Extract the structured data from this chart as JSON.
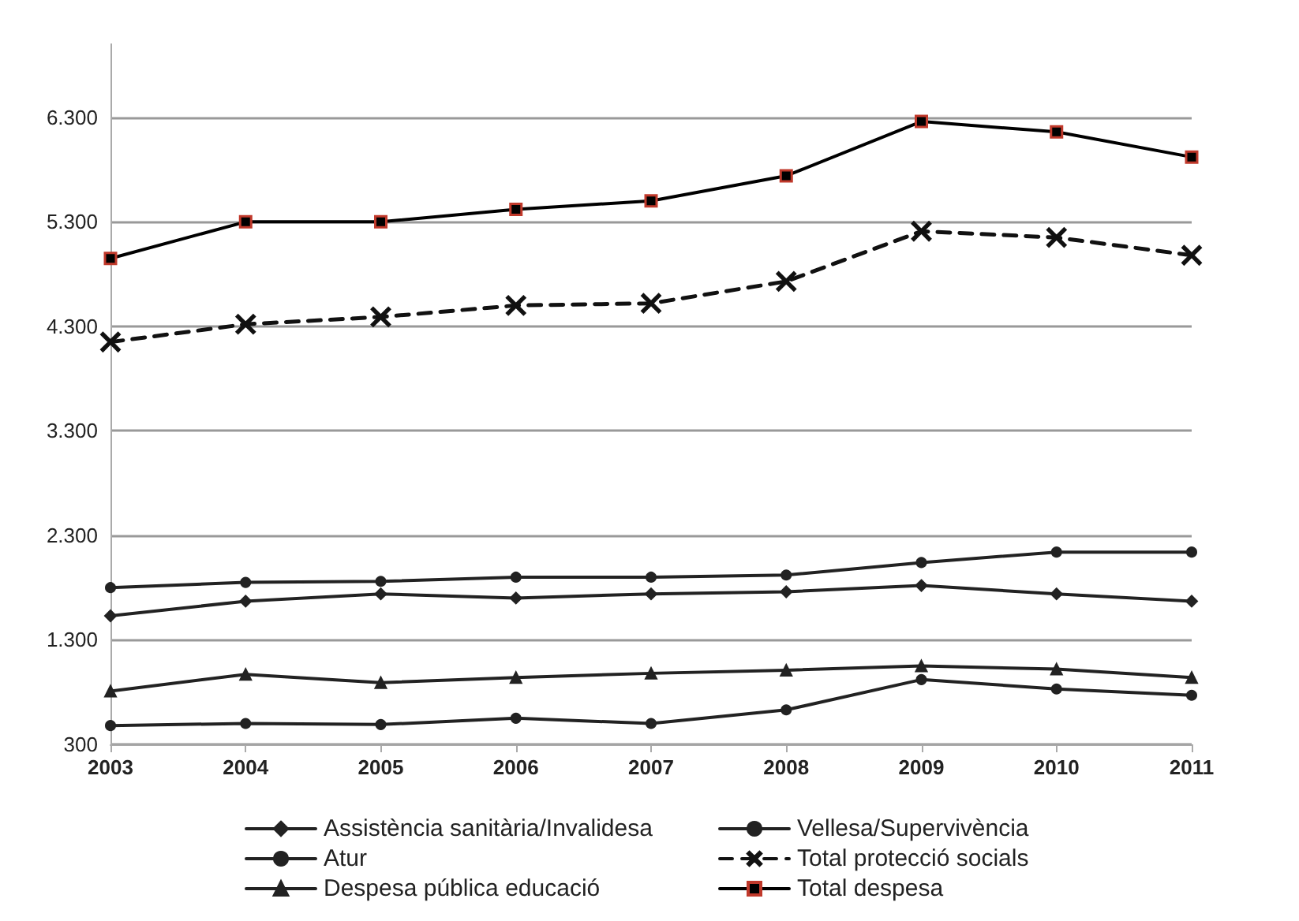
{
  "chart_data": {
    "type": "line",
    "categories": [
      "2003",
      "2004",
      "2005",
      "2006",
      "2007",
      "2008",
      "2009",
      "2010",
      "2011"
    ],
    "series": [
      {
        "name": "Assistència sanitària/Invalidesa",
        "color": "#222222",
        "marker": "diamond",
        "values": [
          1530,
          1670,
          1740,
          1700,
          1740,
          1760,
          1820,
          1740,
          1670
        ]
      },
      {
        "name": "Vellesa/Supervivència",
        "color": "#222222",
        "marker": "circle",
        "values": [
          1800,
          1850,
          1860,
          1900,
          1900,
          1920,
          2040,
          2140,
          2140
        ]
      },
      {
        "name": "Atur",
        "color": "#222222",
        "marker": "circle",
        "values": [
          480,
          500,
          490,
          550,
          500,
          630,
          920,
          830,
          770
        ]
      },
      {
        "name": "Total protecció socials",
        "color": "#111111",
        "marker": "cross",
        "line_style": "dashed",
        "values": [
          4150,
          4320,
          4390,
          4500,
          4520,
          4730,
          5210,
          5150,
          4980
        ]
      },
      {
        "name": "Despesa pública educació",
        "color": "#222222",
        "marker": "triangle",
        "values": [
          810,
          970,
          890,
          940,
          980,
          1010,
          1050,
          1020,
          940
        ]
      },
      {
        "name": "Total despesa",
        "color": "#000000",
        "marker": "square",
        "values": [
          4950,
          5300,
          5300,
          5420,
          5500,
          5740,
          6260,
          6160,
          5920
        ]
      }
    ],
    "ylim": [
      300,
      7000
    ],
    "yticks": [
      300,
      {
        "value": 1300,
        "label": "1.300"
      },
      {
        "value": 2300,
        "label": "2.300"
      },
      {
        "value": 3300,
        "label": "3.300"
      },
      {
        "value": 4300,
        "label": "4.300"
      },
      {
        "value": 5300,
        "label": "5.300"
      },
      {
        "value": 6300,
        "label": "6.300"
      }
    ],
    "grid": "y",
    "legend": "bottom",
    "line_style": "solid"
  }
}
